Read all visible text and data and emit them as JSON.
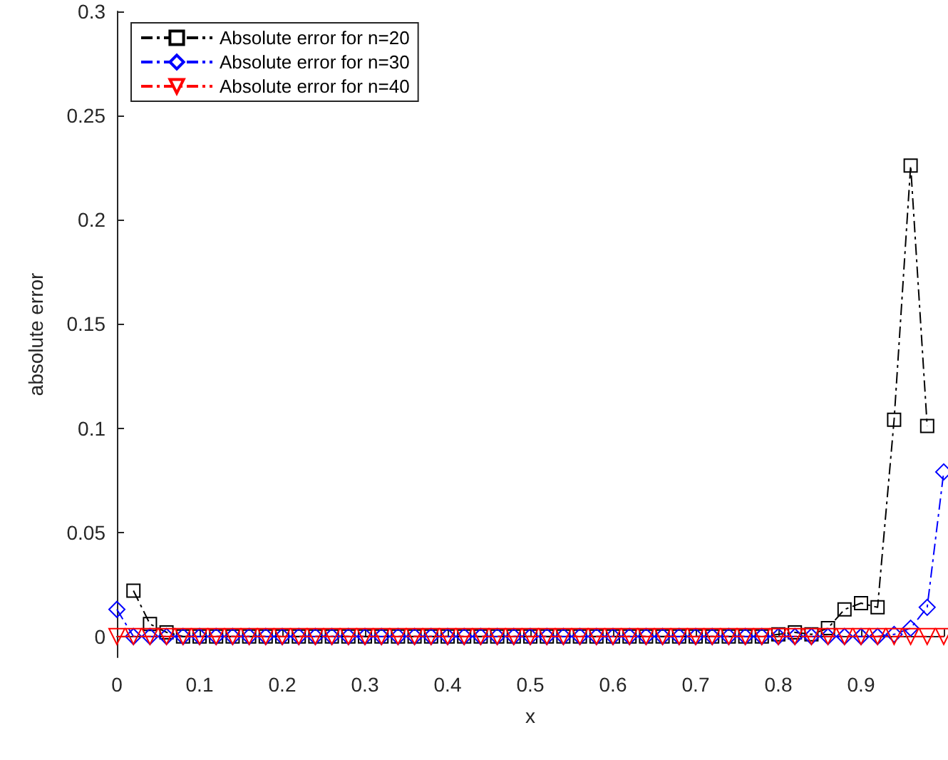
{
  "chart_data": {
    "type": "line",
    "xlabel": "x",
    "ylabel": "absolute error",
    "x": [
      0,
      0.02,
      0.04,
      0.06,
      0.08,
      0.1,
      0.12,
      0.14,
      0.16,
      0.18,
      0.2,
      0.22,
      0.24,
      0.26,
      0.28,
      0.3,
      0.32,
      0.34,
      0.36,
      0.38,
      0.4,
      0.42,
      0.44,
      0.46,
      0.48,
      0.5,
      0.52,
      0.54,
      0.56,
      0.58,
      0.6,
      0.62,
      0.64,
      0.66,
      0.68,
      0.7,
      0.72,
      0.74,
      0.76,
      0.78,
      0.8,
      0.82,
      0.84,
      0.86,
      0.88,
      0.9,
      0.92,
      0.94,
      0.96,
      0.98,
      1
    ],
    "series": [
      {
        "name": "Absolute error for n=20",
        "color": "#000000",
        "marker": "square",
        "values": [
          null,
          0.022,
          0.006,
          0.002,
          0,
          0,
          0,
          0,
          0,
          0,
          0,
          0,
          0,
          0,
          0,
          0,
          0,
          0,
          0,
          0,
          0,
          0,
          0,
          0,
          0,
          0,
          0,
          0,
          0,
          0,
          0,
          0,
          0,
          0,
          0,
          0,
          0,
          0,
          0,
          0,
          0.001,
          0.002,
          0.001,
          0.004,
          0.013,
          0.016,
          0.014,
          0.104,
          0.226,
          0.101,
          null
        ]
      },
      {
        "name": "Absolute error for n=30",
        "color": "#0000ff",
        "marker": "diamond",
        "values": [
          0.013,
          0,
          0,
          0,
          0,
          0,
          0,
          0,
          0,
          0,
          0,
          0,
          0,
          0,
          0,
          0,
          0,
          0,
          0,
          0,
          0,
          0,
          0,
          0,
          0,
          0,
          0,
          0,
          0,
          0,
          0,
          0,
          0,
          0,
          0,
          0,
          0,
          0,
          0,
          0,
          0,
          0,
          0,
          0,
          0,
          0,
          0,
          0.001,
          0.004,
          0.014,
          0.079
        ]
      },
      {
        "name": "Absolute error for n=40",
        "color": "#ff0000",
        "marker": "triangle",
        "values": [
          0,
          0,
          0,
          0,
          0,
          0,
          0,
          0,
          0,
          0,
          0,
          0,
          0,
          0,
          0,
          0,
          0,
          0,
          0,
          0,
          0,
          0,
          0,
          0,
          0,
          0,
          0,
          0,
          0,
          0,
          0,
          0,
          0,
          0,
          0,
          0,
          0,
          0,
          0,
          0,
          0,
          0,
          0,
          0,
          0,
          0,
          0,
          0,
          0,
          0,
          0
        ]
      }
    ],
    "line_style": "dashed",
    "xlim": [
      0,
      1
    ],
    "xticks": [
      0,
      0.1,
      0.2,
      0.3,
      0.4,
      0.5,
      0.6,
      0.7,
      0.8,
      0.9,
      {
        "value": 1,
        "label": null
      }
    ],
    "ylim": [
      -0.01,
      0.3
    ],
    "yticks": [
      0,
      0.05,
      0.1,
      0.15,
      0.2,
      0.25,
      0.3
    ],
    "grid": false,
    "legend": "top left"
  }
}
